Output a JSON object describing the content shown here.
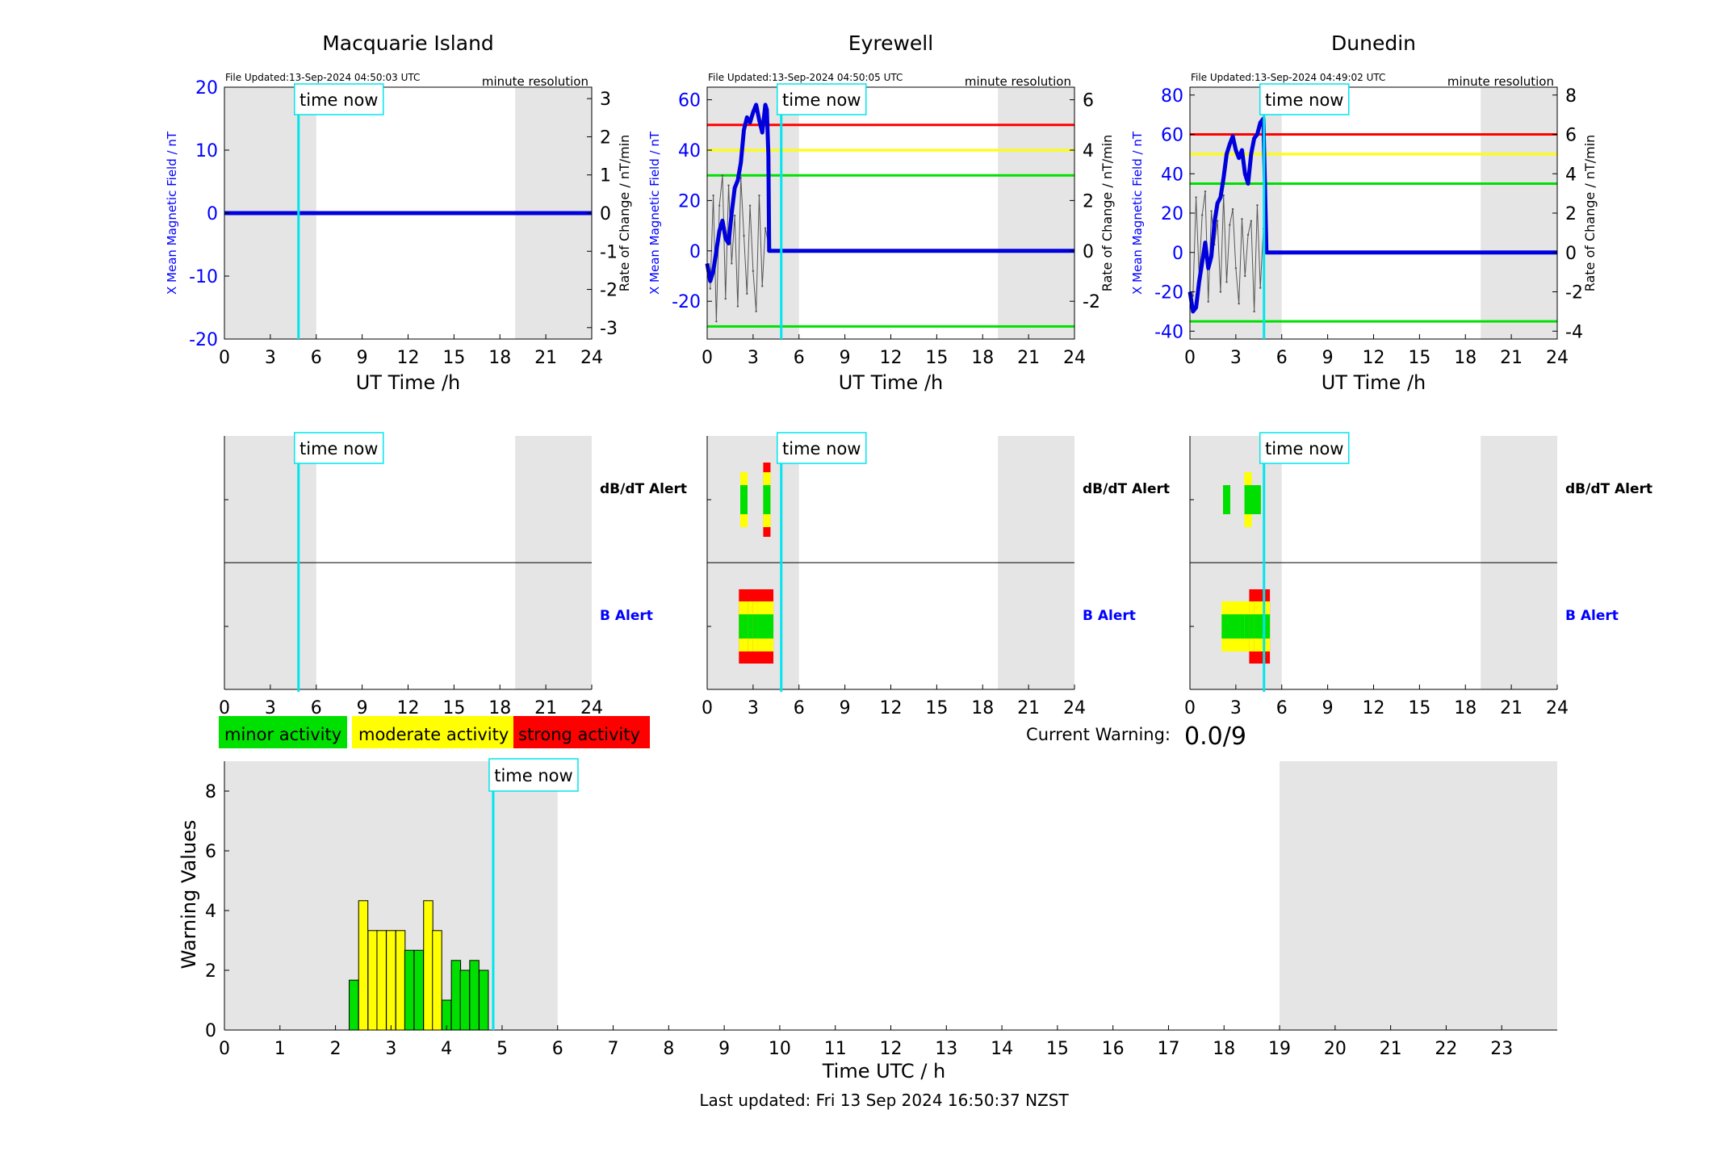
{
  "stations": [
    {
      "name": "Macquarie Island",
      "file_updated": "File Updated:13-Sep-2024 04:50:03 UTC",
      "resolution": "minute resolution",
      "ylabel_left": "X Mean Magnetic Field / nT",
      "ylabel_right": "Rate of Change / nT/min",
      "xlabel": "UT Time /h",
      "ylim": [
        -20,
        20
      ],
      "yticks": [
        "-20",
        "-10",
        "0",
        "10",
        "20"
      ],
      "ylim_right": [
        -3.3,
        3.3
      ],
      "yticks_right": [
        "-3",
        "-2",
        "-1",
        "0",
        "1",
        "2",
        "3"
      ],
      "thresholds": [],
      "field_x": [
        0,
        24
      ],
      "field_y": [
        0,
        0
      ],
      "rate_x": [],
      "rate_y": [],
      "dbdt_alert": [],
      "b_alert": []
    },
    {
      "name": "Eyrewell",
      "file_updated": "File Updated:13-Sep-2024 04:50:05 UTC",
      "resolution": "minute resolution",
      "ylabel_left": "X Mean Magnetic Field / nT",
      "ylabel_right": "Rate of Change / nT/min",
      "xlabel": "UT Time /h",
      "ylim": [
        -35,
        65
      ],
      "yticks": [
        "-20",
        "0",
        "20",
        "40",
        "60"
      ],
      "ylim_right": [
        -3.5,
        6.5
      ],
      "yticks_right": [
        "-2",
        "0",
        "2",
        "4",
        "6"
      ],
      "thresholds": [
        {
          "value": 50,
          "color": "#ff0000"
        },
        {
          "value": 40,
          "color": "#ffff00"
        },
        {
          "value": 30,
          "color": "#00e000"
        },
        {
          "value": -30,
          "color": "#00e000"
        }
      ],
      "field_x": [
        0,
        0.2,
        0.4,
        0.6,
        0.8,
        1.0,
        1.2,
        1.4,
        1.6,
        1.8,
        2.0,
        2.2,
        2.4,
        2.6,
        2.8,
        3.0,
        3.2,
        3.4,
        3.6,
        3.8,
        3.9,
        4.0,
        4.05,
        4.1,
        24
      ],
      "field_y": [
        -5,
        -12,
        -8,
        0,
        8,
        12,
        5,
        3,
        15,
        25,
        28,
        35,
        48,
        53,
        51,
        55,
        58,
        52,
        47,
        58,
        56,
        38,
        0,
        0,
        0
      ],
      "rate_x": [
        0.2,
        0.4,
        0.6,
        0.8,
        1.0,
        1.2,
        1.4,
        1.6,
        1.8,
        2.0,
        2.2,
        2.4,
        2.6,
        2.8,
        3.0,
        3.2,
        3.4,
        3.6,
        3.8,
        4.0
      ],
      "rate_y": [
        -1.5,
        2.2,
        -2.8,
        1.8,
        3.0,
        -1.9,
        2.6,
        -0.5,
        1.4,
        -2.2,
        2.9,
        0.6,
        -1.7,
        1.8,
        -0.8,
        -2.4,
        2.2,
        -1.4,
        0.9,
        0.3
      ],
      "dbdt_alert": [
        {
          "x": 2.4,
          "levels": [
            "yellow",
            "green"
          ]
        },
        {
          "x": 3.9,
          "levels": [
            "red",
            "yellow",
            "green"
          ]
        }
      ],
      "b_alert": [
        {
          "x": 2.6,
          "levels": [
            "red",
            "yellow",
            "green"
          ]
        },
        {
          "x": 2.9,
          "levels": [
            "red",
            "yellow",
            "green"
          ]
        },
        {
          "x": 3.2,
          "levels": [
            "red",
            "yellow",
            "green"
          ]
        },
        {
          "x": 3.5,
          "levels": [
            "red",
            "yellow",
            "green"
          ]
        },
        {
          "x": 3.8,
          "levels": [
            "red",
            "yellow",
            "green"
          ]
        }
      ]
    },
    {
      "name": "Dunedin",
      "file_updated": "File Updated:13-Sep-2024 04:49:02 UTC",
      "resolution": "minute resolution",
      "ylabel_left": "X Mean Magnetic Field / nT",
      "ylabel_right": "Rate of Change / nT/min",
      "xlabel": "UT Time /h",
      "ylim": [
        -44,
        84
      ],
      "yticks": [
        "-40",
        "-20",
        "0",
        "20",
        "40",
        "60",
        "80"
      ],
      "ylim_right": [
        -4.4,
        8.4
      ],
      "yticks_right": [
        "-4",
        "-2",
        "0",
        "2",
        "4",
        "6",
        "8"
      ],
      "thresholds": [
        {
          "value": 60,
          "color": "#ff0000"
        },
        {
          "value": 50,
          "color": "#ffff00"
        },
        {
          "value": 35,
          "color": "#00e000"
        },
        {
          "value": -35,
          "color": "#00e000"
        }
      ],
      "field_x": [
        0,
        0.2,
        0.4,
        0.6,
        0.8,
        1.0,
        1.2,
        1.4,
        1.6,
        1.8,
        2.0,
        2.2,
        2.4,
        2.6,
        2.8,
        3.0,
        3.2,
        3.4,
        3.6,
        3.8,
        4.0,
        4.2,
        4.4,
        4.6,
        4.8,
        4.9,
        5.0,
        24
      ],
      "field_y": [
        -20,
        -30,
        -28,
        -15,
        -5,
        5,
        -8,
        -2,
        15,
        25,
        28,
        38,
        50,
        55,
        59,
        52,
        48,
        52,
        40,
        35,
        50,
        58,
        60,
        66,
        68,
        35,
        0,
        0
      ],
      "rate_x": [
        0.2,
        0.4,
        0.6,
        0.8,
        1.0,
        1.2,
        1.4,
        1.6,
        1.8,
        2.0,
        2.2,
        2.4,
        2.6,
        2.8,
        3.0,
        3.2,
        3.4,
        3.6,
        3.8,
        4.0,
        4.2,
        4.4,
        4.6,
        4.8
      ],
      "rate_y": [
        -2.2,
        2.8,
        -1.2,
        1.9,
        3.1,
        -2.5,
        2.1,
        0.4,
        1.6,
        -2.0,
        2.9,
        -1.5,
        1.4,
        2.2,
        -0.8,
        -2.6,
        1.7,
        -1.2,
        0.9,
        1.6,
        -3.0,
        2.4,
        -1.8,
        1.2
      ],
      "dbdt_alert": [
        {
          "x": 2.4,
          "levels": [
            "green"
          ]
        },
        {
          "x": 3.8,
          "levels": [
            "yellow",
            "green"
          ]
        },
        {
          "x": 4.1,
          "levels": [
            "green"
          ]
        },
        {
          "x": 4.4,
          "levels": [
            "green"
          ]
        }
      ],
      "b_alert": [
        {
          "x": 2.6,
          "levels": [
            "yellow",
            "green"
          ]
        },
        {
          "x": 2.9,
          "levels": [
            "yellow",
            "green"
          ]
        },
        {
          "x": 3.2,
          "levels": [
            "green"
          ]
        },
        {
          "x": 3.5,
          "levels": [
            "green"
          ]
        },
        {
          "x": 3.8,
          "levels": [
            "yellow",
            "green"
          ]
        },
        {
          "x": 4.1,
          "levels": [
            "yellow",
            "green"
          ]
        },
        {
          "x": 4.4,
          "levels": [
            "red",
            "yellow",
            "green"
          ]
        },
        {
          "x": 4.7,
          "levels": [
            "red",
            "yellow",
            "green"
          ]
        }
      ]
    }
  ],
  "shared": {
    "time_now_label": "time now",
    "time_now_hour": 4.84,
    "night_ranges": [
      [
        0,
        6
      ],
      [
        19,
        24
      ]
    ],
    "xticks_24": [
      "0",
      "3",
      "6",
      "9",
      "12",
      "15",
      "18",
      "21",
      "24"
    ],
    "dbdt_label": "dB/dT Alert",
    "b_label": "B Alert"
  },
  "legend": [
    {
      "label": "minor activity",
      "color": "#00e000"
    },
    {
      "label": "moderate activity",
      "color": "#ffff00"
    },
    {
      "label": "strong activity",
      "color": "#ff0000"
    }
  ],
  "current_warning": {
    "label": "Current Warning:",
    "value": "0.0/9"
  },
  "chart_data": {
    "type": "bar",
    "ylabel": "Warning Values",
    "xlabel": "Time UTC / h",
    "ylim": [
      0,
      9
    ],
    "yticks": [
      "0",
      "2",
      "4",
      "6",
      "8"
    ],
    "xlim": [
      0,
      24
    ],
    "xticks": [
      "0",
      "1",
      "2",
      "3",
      "4",
      "5",
      "6",
      "7",
      "8",
      "9",
      "10",
      "11",
      "12",
      "13",
      "14",
      "15",
      "16",
      "17",
      "18",
      "19",
      "20",
      "21",
      "22",
      "23"
    ],
    "bar_width_h": 0.1667,
    "bars": [
      {
        "x": 2.33,
        "value": 1.67,
        "color": "#00e000"
      },
      {
        "x": 2.5,
        "value": 4.33,
        "color": "#ffff00"
      },
      {
        "x": 2.67,
        "value": 3.33,
        "color": "#ffff00"
      },
      {
        "x": 2.83,
        "value": 3.33,
        "color": "#ffff00"
      },
      {
        "x": 3.0,
        "value": 3.33,
        "color": "#ffff00"
      },
      {
        "x": 3.17,
        "value": 3.33,
        "color": "#ffff00"
      },
      {
        "x": 3.33,
        "value": 2.67,
        "color": "#00e000"
      },
      {
        "x": 3.5,
        "value": 2.67,
        "color": "#00e000"
      },
      {
        "x": 3.67,
        "value": 4.33,
        "color": "#ffff00"
      },
      {
        "x": 3.83,
        "value": 3.33,
        "color": "#ffff00"
      },
      {
        "x": 4.0,
        "value": 1.0,
        "color": "#00e000"
      },
      {
        "x": 4.17,
        "value": 2.33,
        "color": "#00e000"
      },
      {
        "x": 4.33,
        "value": 2.0,
        "color": "#00e000"
      },
      {
        "x": 4.5,
        "value": 2.33,
        "color": "#00e000"
      },
      {
        "x": 4.67,
        "value": 2.0,
        "color": "#00e000"
      }
    ]
  },
  "footer": {
    "last_updated": "Last updated: Fri 13 Sep 2024 16:50:37 NZST"
  },
  "colors": {
    "night_shade": "#e5e5e5",
    "time_now": "#00e5ee",
    "field_line": "#0000dd",
    "axis_label_blue": "#0000ff",
    "rate_line": "#555555"
  }
}
